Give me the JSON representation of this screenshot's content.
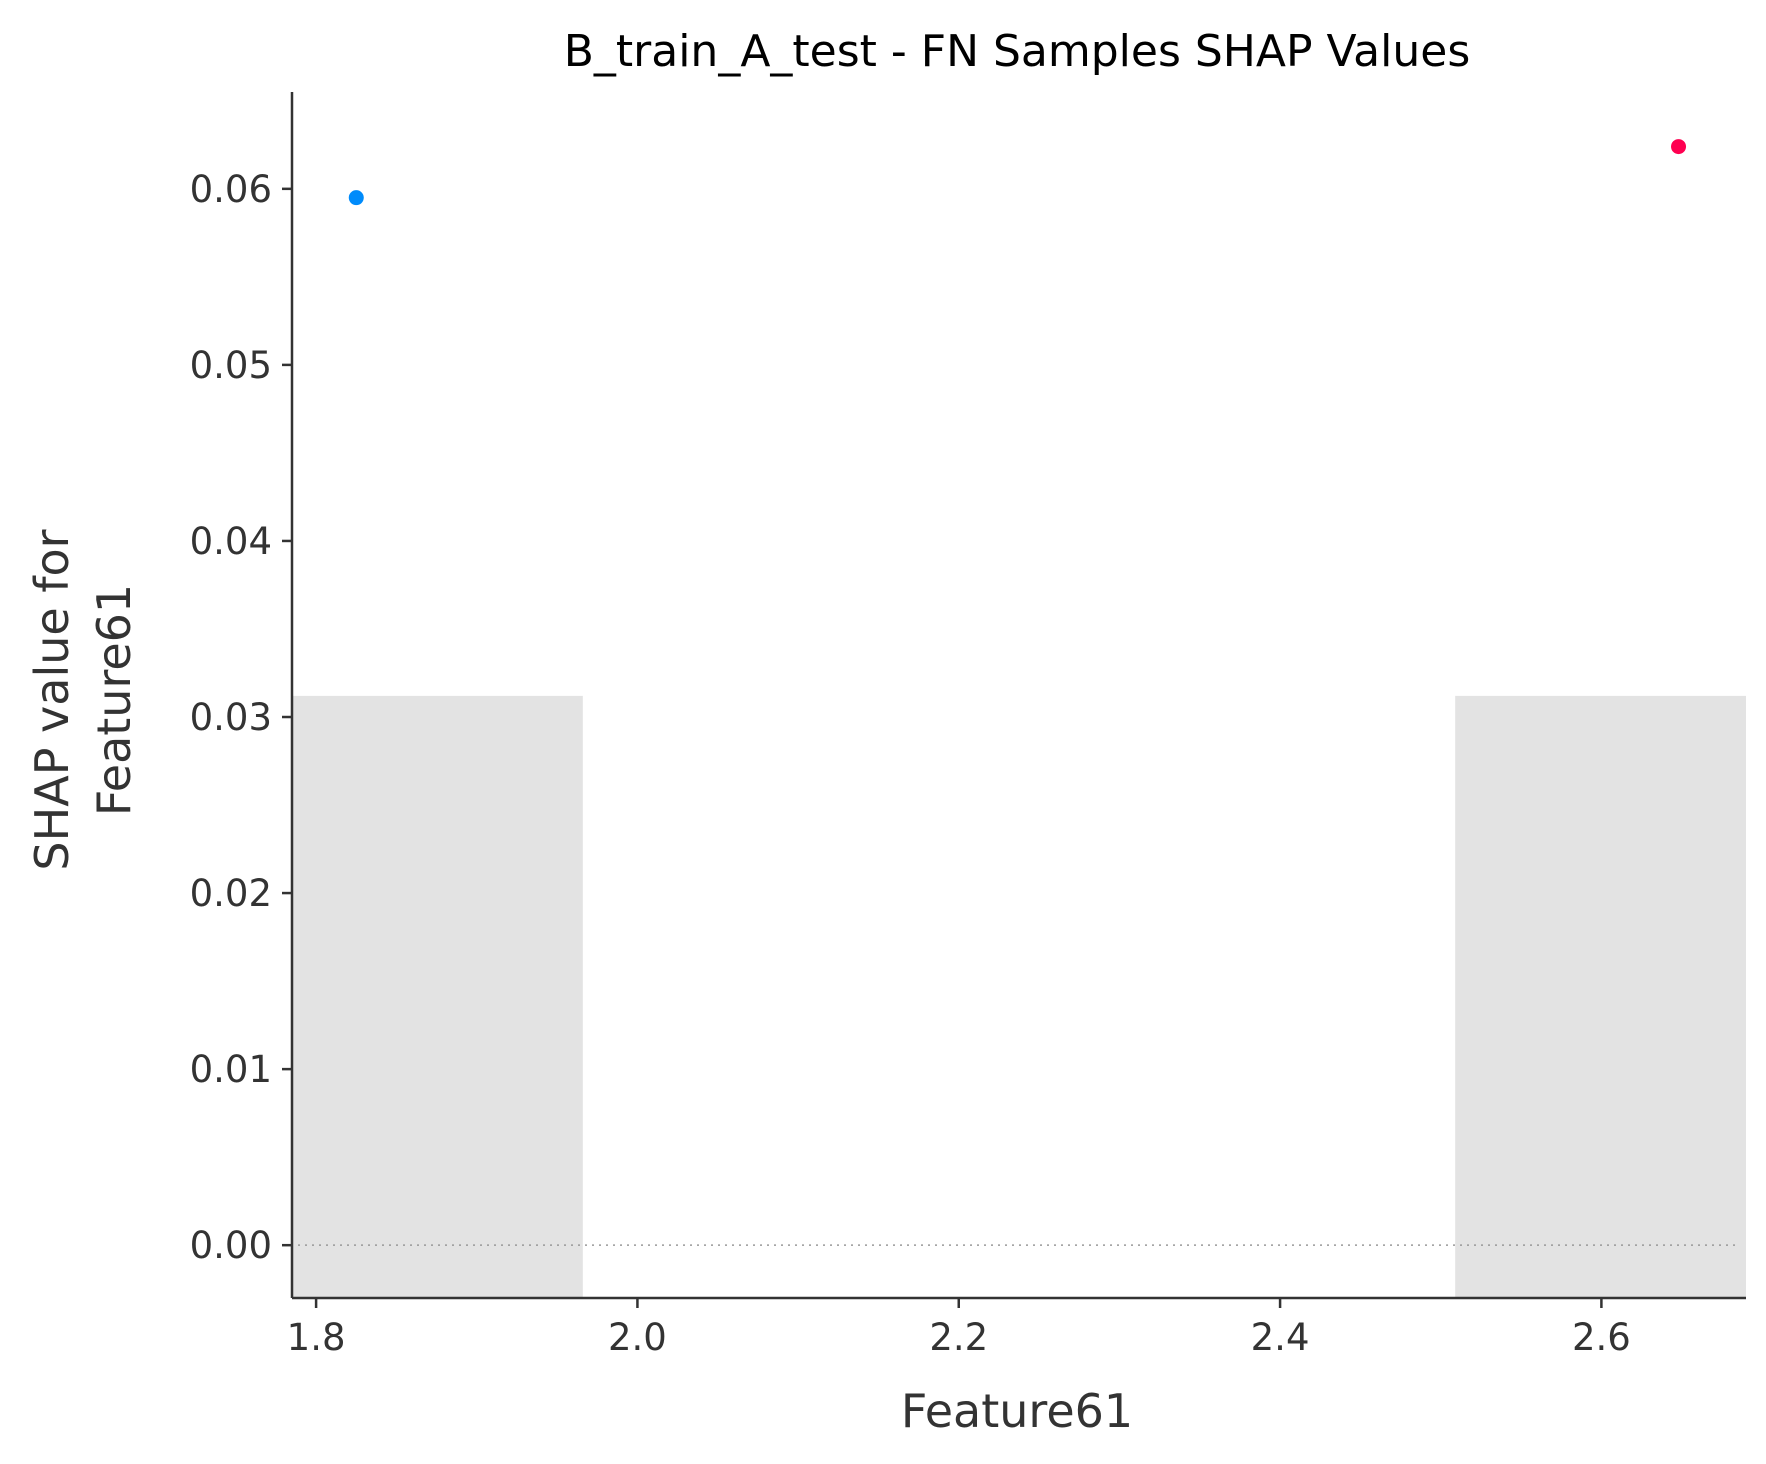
{
  "chart_data": {
    "type": "scatter",
    "title": "B_train_A_test - FN Samples SHAP Values",
    "xlabel": "Feature61",
    "ylabel_lines": [
      "SHAP value for",
      "Feature61"
    ],
    "xlim": [
      1.785,
      2.69
    ],
    "ylim": [
      -0.003,
      0.0655
    ],
    "xticks": [
      1.8,
      2.0,
      2.2,
      2.4,
      2.6
    ],
    "xtick_labels": [
      "1.8",
      "2.0",
      "2.2",
      "2.4",
      "2.6"
    ],
    "yticks": [
      0.0,
      0.01,
      0.02,
      0.03,
      0.04,
      0.05,
      0.06
    ],
    "ytick_labels": [
      "0.00",
      "0.01",
      "0.02",
      "0.03",
      "0.04",
      "0.05",
      "0.06"
    ],
    "points": [
      {
        "x": 1.825,
        "y": 0.0595,
        "color": "#008bfb"
      },
      {
        "x": 2.648,
        "y": 0.0624,
        "color": "#ff0051"
      }
    ],
    "histogram": [
      {
        "x0": 1.785,
        "x1": 1.966,
        "height": 0.0312
      },
      {
        "x0": 2.509,
        "x1": 2.69,
        "height": 0.0312
      }
    ],
    "zero_line": true,
    "grid": false,
    "legend": "none"
  }
}
